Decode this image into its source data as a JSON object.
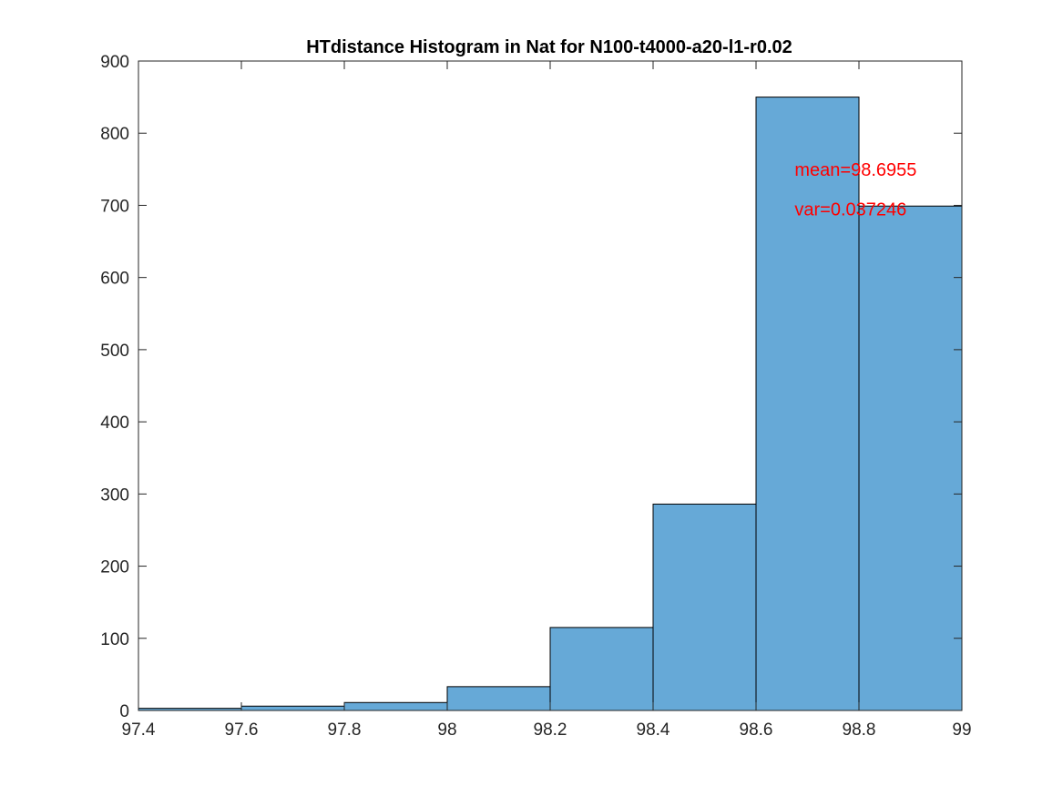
{
  "chart_data": {
    "type": "bar",
    "title": "HTdistance Histogram in Nat for N100-t4000-a20-l1-r0.02",
    "xlabel": "",
    "ylabel": "",
    "bin_edges": [
      97.4,
      97.6,
      97.8,
      98.0,
      98.2,
      98.4,
      98.6,
      98.8,
      99.0
    ],
    "values": [
      3,
      6,
      11,
      33,
      115,
      286,
      850,
      699
    ],
    "xlim": [
      97.4,
      99
    ],
    "ylim": [
      0,
      900
    ],
    "x_ticks": [
      "97.4",
      "97.6",
      "97.8",
      "98",
      "98.2",
      "98.4",
      "98.6",
      "98.8",
      "99"
    ],
    "y_ticks": [
      "0",
      "100",
      "200",
      "300",
      "400",
      "500",
      "600",
      "700",
      "800",
      "900"
    ],
    "grid": false,
    "bar_color": "#66a9d7",
    "annotations": [
      {
        "text": "mean=98.6955",
        "x": 98.675,
        "y": 741,
        "color": "#ff0000"
      },
      {
        "text": "var=0.037246",
        "x": 98.675,
        "y": 686,
        "color": "#ff0000"
      }
    ]
  }
}
